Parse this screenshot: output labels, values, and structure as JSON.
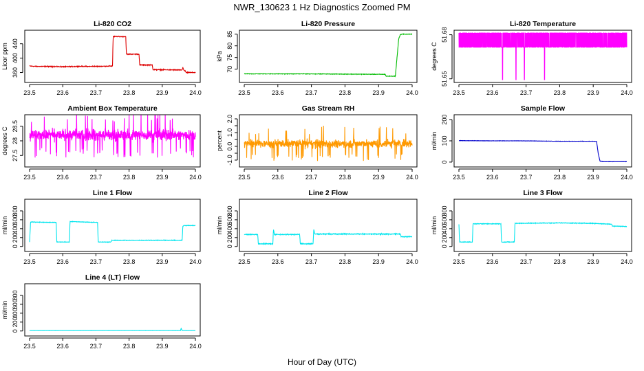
{
  "figure": {
    "title": "NWR_130623  1 Hz Diagnostics Zoomed PM",
    "xlabel": "Hour of Day (UTC)"
  },
  "chart_data": [
    {
      "type": "line",
      "title": "Li-820 CO2",
      "ylabel": "Licor ppm",
      "color": "#dd0000",
      "xlim": [
        23.5,
        24.0
      ],
      "ylim": [
        340,
        470
      ],
      "x_ticks": [
        23.5,
        23.6,
        23.7,
        23.8,
        23.9,
        24.0
      ],
      "y_ticks": [
        360,
        400,
        440
      ],
      "noise": 1.5,
      "series": [
        {
          "x": [
            23.5,
            23.52,
            23.55,
            23.6,
            23.65,
            23.7,
            23.75,
            23.752,
            23.76,
            23.79,
            23.792,
            23.83,
            23.832,
            23.87,
            23.872,
            23.96,
            23.962,
            23.965,
            23.97,
            23.972,
            24.0
          ],
          "y": [
            378,
            377,
            377,
            376,
            377,
            377,
            378,
            460,
            460,
            460,
            411,
            411,
            381,
            381,
            368,
            367,
            375,
            366,
            364,
            360,
            360
          ]
        }
      ]
    },
    {
      "type": "line",
      "title": "Li-820 Pressure",
      "ylabel": "kPa",
      "color": "#00bb00",
      "xlim": [
        23.5,
        24.0
      ],
      "ylim": [
        65.5,
        85.5
      ],
      "x_ticks": [
        23.5,
        23.6,
        23.7,
        23.8,
        23.9,
        24.0
      ],
      "y_ticks": [
        70,
        75,
        80,
        85
      ],
      "noise": 0.15,
      "series": [
        {
          "x": [
            23.5,
            23.6,
            23.7,
            23.8,
            23.9,
            23.92,
            23.922,
            23.95,
            23.955,
            23.96,
            23.965,
            23.97,
            24.0
          ],
          "y": [
            68.0,
            68.0,
            68.0,
            67.9,
            67.8,
            67.8,
            67.0,
            67.0,
            75,
            83,
            84.8,
            85.0,
            85.0
          ]
        }
      ]
    },
    {
      "type": "line",
      "title": "Li-820 Temperature",
      "ylabel": "degrees C",
      "color": "#ff00ff",
      "xlim": [
        23.5,
        24.0
      ],
      "ylim": [
        51.6494,
        51.6812
      ],
      "x_ticks": [
        23.5,
        23.6,
        23.7,
        23.8,
        23.9,
        24.0
      ],
      "y_ticks": [
        51.65,
        51.68
      ],
      "y_tick_labels": [
        "51.65",
        "51.68"
      ],
      "pattern": "binary",
      "levels": [
        51.6715,
        51.6812
      ],
      "spikes": [
        {
          "x": 23.63,
          "y": 51.6494
        },
        {
          "x": 23.67,
          "y": 51.6494
        },
        {
          "x": 23.695,
          "y": 51.6494
        },
        {
          "x": 23.755,
          "y": 51.6494
        }
      ],
      "series": [
        {
          "x": [
            23.5,
            24.0
          ],
          "y": [
            51.6715,
            51.6812
          ]
        }
      ]
    },
    {
      "type": "line",
      "title": "Ambient Box Temperature",
      "ylabel": "degrees C",
      "color": "#ff00ff",
      "xlim": [
        23.5,
        24.0
      ],
      "ylim": [
        27.2,
        28.8
      ],
      "x_ticks": [
        23.5,
        23.6,
        23.7,
        23.8,
        23.9,
        24.0
      ],
      "y_ticks": [
        27.5,
        28.0,
        28.5
      ],
      "pattern": "noise",
      "center": 28.2,
      "amplitude": 0.28,
      "series": [
        {
          "x": [
            23.5,
            24.0
          ],
          "y": [
            28.2,
            28.2
          ]
        }
      ]
    },
    {
      "type": "line",
      "title": "Gas Stream RH",
      "ylabel": "percent",
      "color": "#ff9900",
      "xlim": [
        23.5,
        24.0
      ],
      "ylim": [
        -1.3,
        2.1
      ],
      "x_ticks": [
        23.5,
        23.6,
        23.7,
        23.8,
        23.9,
        24.0
      ],
      "y_ticks": [
        -1.0,
        -0.5,
        0.0,
        0.5,
        1.0,
        1.5,
        2.0
      ],
      "y_tick_labels": [
        "-1.0",
        "",
        "0.0",
        "",
        "1.0",
        "",
        "2.0"
      ],
      "pattern": "noise",
      "center": 0.2,
      "amplitude": 0.45,
      "series": [
        {
          "x": [
            23.5,
            24.0
          ],
          "y": [
            0.2,
            0.2
          ]
        }
      ]
    },
    {
      "type": "line",
      "title": "Sample Flow",
      "ylabel": "ml/min",
      "color": "#0000cc",
      "xlim": [
        23.5,
        24.0
      ],
      "ylim": [
        -10,
        210
      ],
      "x_ticks": [
        23.5,
        23.6,
        23.7,
        23.8,
        23.9,
        24.0
      ],
      "y_ticks": [
        0,
        100,
        200
      ],
      "noise": 1.0,
      "series": [
        {
          "x": [
            23.5,
            23.6,
            23.7,
            23.75,
            23.8,
            23.9,
            23.91,
            23.915,
            23.92,
            23.93,
            24.0
          ],
          "y": [
            101,
            100,
            100,
            99,
            98,
            98,
            97,
            40,
            5,
            2,
            2
          ]
        }
      ]
    },
    {
      "type": "line",
      "title": "Line 1 Flow",
      "ylabel": "ml/min",
      "color": "#00e5ee",
      "xlim": [
        23.5,
        24.0
      ],
      "ylim": [
        -50,
        1000
      ],
      "x_ticks": [
        23.5,
        23.6,
        23.7,
        23.8,
        23.9,
        24.0
      ],
      "y_ticks": [
        0,
        200,
        400,
        600,
        800
      ],
      "noise": 8,
      "series": [
        {
          "x": [
            23.5,
            23.503,
            23.505,
            23.58,
            23.582,
            23.62,
            23.622,
            23.625,
            23.705,
            23.707,
            23.745,
            23.748,
            23.96,
            23.962,
            23.965,
            23.97,
            24.0
          ],
          "y": [
            100,
            550,
            550,
            540,
            100,
            100,
            560,
            560,
            540,
            100,
            100,
            140,
            140,
            450,
            470,
            470,
            470
          ]
        }
      ]
    },
    {
      "type": "line",
      "title": "Line 2 Flow",
      "ylabel": "ml/min",
      "color": "#00e5ee",
      "xlim": [
        23.5,
        24.0
      ],
      "ylim": [
        -50,
        1000
      ],
      "x_ticks": [
        23.5,
        23.6,
        23.7,
        23.8,
        23.9,
        24.0
      ],
      "y_ticks": [
        0,
        200,
        400,
        600,
        800
      ],
      "noise": 14,
      "series": [
        {
          "x": [
            23.5,
            23.54,
            23.542,
            23.585,
            23.587,
            23.59,
            23.665,
            23.667,
            23.705,
            23.707,
            23.71,
            23.965,
            23.967,
            24.0
          ],
          "y": [
            270,
            270,
            60,
            60,
            390,
            270,
            270,
            60,
            60,
            390,
            280,
            280,
            220,
            220
          ]
        }
      ]
    },
    {
      "type": "line",
      "title": "Line 3 Flow",
      "ylabel": "ml/min",
      "color": "#00e5ee",
      "xlim": [
        23.5,
        24.0
      ],
      "ylim": [
        -50,
        1000
      ],
      "x_ticks": [
        23.5,
        23.6,
        23.7,
        23.8,
        23.9,
        24.0
      ],
      "y_ticks": [
        0,
        200,
        400,
        600,
        800
      ],
      "noise": 10,
      "series": [
        {
          "x": [
            23.5,
            23.502,
            23.505,
            23.54,
            23.542,
            23.625,
            23.627,
            23.665,
            23.667,
            23.8,
            23.9,
            23.955,
            23.957,
            24.0
          ],
          "y": [
            500,
            100,
            100,
            100,
            510,
            510,
            100,
            100,
            520,
            530,
            520,
            500,
            460,
            450
          ]
        }
      ]
    },
    {
      "type": "line",
      "title": "Line 4 (LT) Flow",
      "ylabel": "ml/min",
      "color": "#00e5ee",
      "xlim": [
        23.5,
        24.0
      ],
      "ylim": [
        -50,
        1000
      ],
      "x_ticks": [
        23.5,
        23.6,
        23.7,
        23.8,
        23.9,
        24.0
      ],
      "y_ticks": [
        0,
        200,
        400,
        600,
        800
      ],
      "noise": 2,
      "series": [
        {
          "x": [
            23.5,
            23.95,
            23.955,
            23.957,
            23.96,
            24.0
          ],
          "y": [
            10,
            10,
            10,
            60,
            10,
            10
          ]
        }
      ]
    }
  ]
}
